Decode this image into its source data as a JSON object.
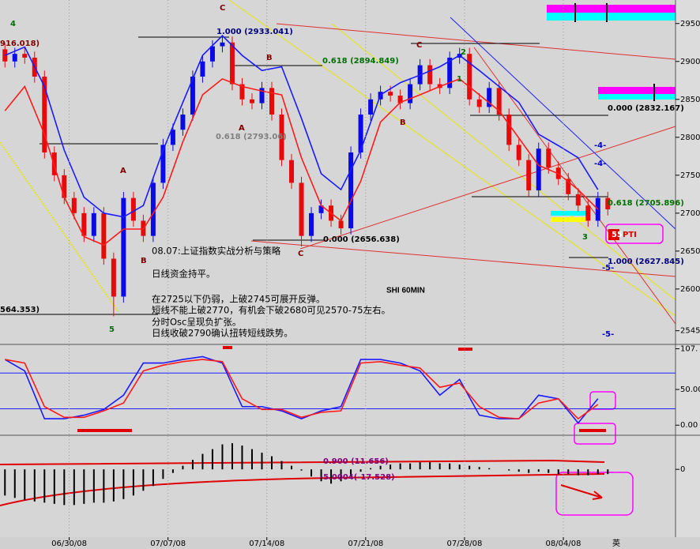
{
  "chart_data": [
    {
      "type": "candlestick",
      "xlim": [
        -14,
        122.7
      ],
      "ylim": [
        2528,
        2981
      ],
      "yticks": [
        2950,
        2900,
        2850,
        2800,
        2750,
        2700,
        2650,
        2600,
        {
          "value": 2545,
          "label": "2545."
        }
      ],
      "up_color": "#0a0ae6",
      "down_color": "#e60a0a",
      "x": [
        -13,
        -11,
        -9,
        -7,
        -5,
        -3,
        -1,
        1,
        3,
        5,
        7,
        9,
        11,
        13,
        15,
        17,
        19,
        21,
        23,
        25,
        27,
        29,
        31,
        33,
        35,
        37,
        39,
        41,
        43,
        45,
        47,
        49,
        51,
        53,
        55,
        57,
        59,
        61,
        63,
        65,
        67,
        69,
        71,
        73,
        75,
        77,
        79,
        81,
        83,
        85,
        87,
        89,
        91,
        93,
        95,
        97,
        99,
        101,
        103,
        105,
        107,
        109
      ],
      "open": [
        2916,
        2900,
        2910,
        2905,
        2880,
        2780,
        2750,
        2720,
        2700,
        2670,
        2700,
        2640,
        2590,
        2720,
        2690,
        2670,
        2740,
        2790,
        2810,
        2830,
        2880,
        2900,
        2920,
        2925,
        2870,
        2850,
        2845,
        2865,
        2830,
        2770,
        2740,
        2670,
        2700,
        2710,
        2690,
        2680,
        2780,
        2830,
        2850,
        2860,
        2855,
        2845,
        2870,
        2895,
        2870,
        2865,
        2905,
        2910,
        2850,
        2840,
        2865,
        2830,
        2790,
        2770,
        2730,
        2785,
        2760,
        2745,
        2725,
        2710,
        2690,
        2720
      ],
      "high": [
        2924,
        2918,
        2918,
        2913,
        2888,
        2788,
        2758,
        2728,
        2708,
        2708,
        2708,
        2648,
        2728,
        2728,
        2698,
        2748,
        2798,
        2818,
        2838,
        2888,
        2908,
        2928,
        2933,
        2933,
        2878,
        2858,
        2873,
        2873,
        2838,
        2778,
        2748,
        2708,
        2718,
        2718,
        2698,
        2788,
        2838,
        2858,
        2868,
        2868,
        2863,
        2878,
        2903,
        2903,
        2878,
        2913,
        2918,
        2918,
        2858,
        2873,
        2873,
        2838,
        2798,
        2778,
        2793,
        2793,
        2768,
        2753,
        2733,
        2718,
        2728,
        2728
      ],
      "low": [
        2892,
        2892,
        2897,
        2872,
        2772,
        2742,
        2712,
        2692,
        2662,
        2662,
        2632,
        2564,
        2582,
        2682,
        2662,
        2662,
        2732,
        2782,
        2802,
        2822,
        2872,
        2892,
        2912,
        2862,
        2842,
        2837,
        2837,
        2822,
        2762,
        2732,
        2656,
        2662,
        2692,
        2682,
        2672,
        2672,
        2772,
        2822,
        2842,
        2847,
        2837,
        2837,
        2862,
        2862,
        2857,
        2857,
        2897,
        2842,
        2832,
        2832,
        2822,
        2782,
        2762,
        2722,
        2722,
        2752,
        2737,
        2717,
        2702,
        2682,
        2682,
        2697
      ],
      "close": [
        2900,
        2910,
        2905,
        2880,
        2780,
        2750,
        2720,
        2700,
        2670,
        2700,
        2640,
        2590,
        2720,
        2690,
        2670,
        2740,
        2790,
        2810,
        2830,
        2880,
        2900,
        2920,
        2925,
        2870,
        2850,
        2845,
        2865,
        2830,
        2770,
        2740,
        2670,
        2700,
        2710,
        2690,
        2680,
        2780,
        2830,
        2850,
        2860,
        2855,
        2845,
        2870,
        2895,
        2870,
        2865,
        2905,
        2910,
        2850,
        2840,
        2865,
        2830,
        2790,
        2770,
        2730,
        2785,
        2760,
        2745,
        2725,
        2710,
        2690,
        2720,
        2705
      ],
      "series": [
        {
          "color": "#1a1aff",
          "x": [
            -13,
            -9,
            -5,
            -1,
            3,
            7,
            11,
            15,
            19,
            23,
            27,
            31,
            35,
            39,
            43,
            47,
            51,
            55,
            59,
            63,
            67,
            71,
            75,
            79,
            83,
            87,
            91,
            95,
            99,
            103,
            107
          ],
          "values": [
            2908,
            2919,
            2867,
            2783,
            2721,
            2700,
            2695,
            2710,
            2783,
            2846,
            2908,
            2934,
            2908,
            2888,
            2893,
            2825,
            2752,
            2731,
            2783,
            2856,
            2872,
            2882,
            2893,
            2908,
            2888,
            2867,
            2846,
            2804,
            2789,
            2773,
            2731
          ]
        },
        {
          "color": "#ff1a1a",
          "x": [
            -13,
            -9,
            -5,
            -1,
            3,
            7,
            11,
            15,
            19,
            23,
            27,
            31,
            35,
            39,
            43,
            47,
            51,
            55,
            59,
            63,
            67,
            71,
            75,
            79,
            83,
            87,
            91,
            95,
            99,
            103,
            107
          ],
          "values": [
            2835,
            2867,
            2804,
            2721,
            2669,
            2658,
            2679,
            2679,
            2721,
            2794,
            2856,
            2877,
            2867,
            2861,
            2856,
            2773,
            2710,
            2690,
            2742,
            2820,
            2846,
            2856,
            2867,
            2877,
            2856,
            2835,
            2799,
            2763,
            2752,
            2731,
            2705
          ]
        }
      ],
      "annotations": [
        "916.018)",
        "C",
        "1.000 (2933.041)",
        "0.618 (2894.849)",
        "B",
        "A",
        "0.618 (2793.06)",
        "A",
        "B",
        "C",
        "0.000 (2656.638)",
        "C",
        "2",
        "1",
        "B",
        "0.000 (2832.167)",
        "-4-",
        "-4-",
        "0.618 (2705.896)",
        "3",
        "1.000 (2627.845)",
        "-5-",
        "-5-",
        "4",
        "5",
        "564.353)",
        "SHI 60MIN",
        "PTI",
        "55"
      ],
      "commentary": [
        "08.07:上证指数实战分析与策略",
        "日线资金持平。",
        "在2725以下仍弱，上破2745可展开反弹。",
        "短线不能上破2770，有机会下破2680可见2570-75左右。",
        "分时Osc呈现负扩张。",
        "日线收破2790确认扭转短线跌势。"
      ]
    },
    {
      "type": "line",
      "xlim": [
        -14,
        122.7
      ],
      "ylim": [
        -13,
        112
      ],
      "yticks": [
        {
          "value": 107,
          "label": "107."
        },
        {
          "value": 50,
          "label": "50.00"
        },
        {
          "value": 0,
          "label": "0.00"
        }
      ],
      "levels": [
        73,
        23
      ],
      "level_color": "#2020ff",
      "series": [
        {
          "color": "#1a1aff",
          "x": [
            -13,
            -9,
            -5,
            -1,
            3,
            7,
            11,
            15,
            19,
            23,
            27,
            31,
            35,
            39,
            43,
            47,
            51,
            55,
            59,
            63,
            67,
            71,
            75,
            79,
            83,
            87,
            91,
            95,
            99,
            103,
            107
          ],
          "values": [
            92,
            76,
            9,
            9,
            14,
            22,
            42,
            87,
            87,
            92,
            96,
            87,
            26,
            26,
            20,
            9,
            20,
            26,
            92,
            92,
            87,
            76,
            42,
            64,
            14,
            9,
            9,
            42,
            37,
            3,
            37
          ]
        },
        {
          "color": "#ff1a1a",
          "x": [
            -13,
            -9,
            -5,
            -1,
            3,
            7,
            11,
            15,
            19,
            23,
            27,
            31,
            35,
            39,
            43,
            47,
            51,
            55,
            59,
            63,
            67,
            71,
            75,
            79,
            83,
            87,
            91,
            95,
            99,
            103,
            107
          ],
          "values": [
            92,
            87,
            26,
            11,
            11,
            20,
            31,
            76,
            84,
            89,
            92,
            89,
            37,
            22,
            22,
            11,
            18,
            20,
            87,
            89,
            84,
            80,
            53,
            59,
            26,
            11,
            9,
            31,
            37,
            9,
            29
          ]
        }
      ]
    },
    {
      "type": "bar",
      "xlim": [
        -14,
        122.7
      ],
      "ylim": [
        -57,
        28
      ],
      "yticks": [
        0
      ],
      "color": "#000000",
      "x": [
        -13,
        -11,
        -9,
        -7,
        -5,
        -3,
        -1,
        1,
        3,
        5,
        7,
        9,
        11,
        13,
        15,
        17,
        19,
        21,
        23,
        25,
        27,
        29,
        31,
        33,
        35,
        37,
        39,
        41,
        43,
        45,
        47,
        49,
        51,
        53,
        55,
        57,
        59,
        61,
        63,
        65,
        67,
        69,
        71,
        73,
        75,
        77,
        79,
        81,
        83,
        85,
        87,
        89,
        91,
        93,
        95,
        97,
        99,
        101,
        103,
        105,
        107,
        109
      ],
      "values": [
        -22,
        -24,
        -26,
        -27,
        -28,
        -29,
        -30,
        -30,
        -29,
        -28,
        -28,
        -27,
        -25,
        -22,
        -18,
        -14,
        -8,
        -3,
        3,
        8,
        13,
        17,
        21,
        22,
        20,
        17,
        14,
        11,
        7,
        3,
        -1,
        -6,
        -10,
        -12,
        -10,
        -6,
        -2,
        1,
        3,
        4,
        5,
        5,
        6,
        6,
        5,
        5,
        4,
        3,
        2,
        1,
        0,
        -1,
        -2,
        -3,
        -2,
        -3,
        -4,
        -4,
        -5,
        -5,
        -4,
        -4
      ],
      "annotations": [
        "0.900 (11.656)",
        "-5.0004(-17.528)"
      ],
      "xticks": [
        {
          "value": 0,
          "label": "06/30/08"
        },
        {
          "value": 20,
          "label": "07/07/08"
        },
        {
          "value": 40,
          "label": "07/14/08"
        },
        {
          "value": 60,
          "label": "07/21/08"
        },
        {
          "value": 80,
          "label": "07/28/08"
        },
        {
          "value": 100,
          "label": "08/04/08"
        }
      ]
    }
  ],
  "taskbar": [
    "英"
  ]
}
